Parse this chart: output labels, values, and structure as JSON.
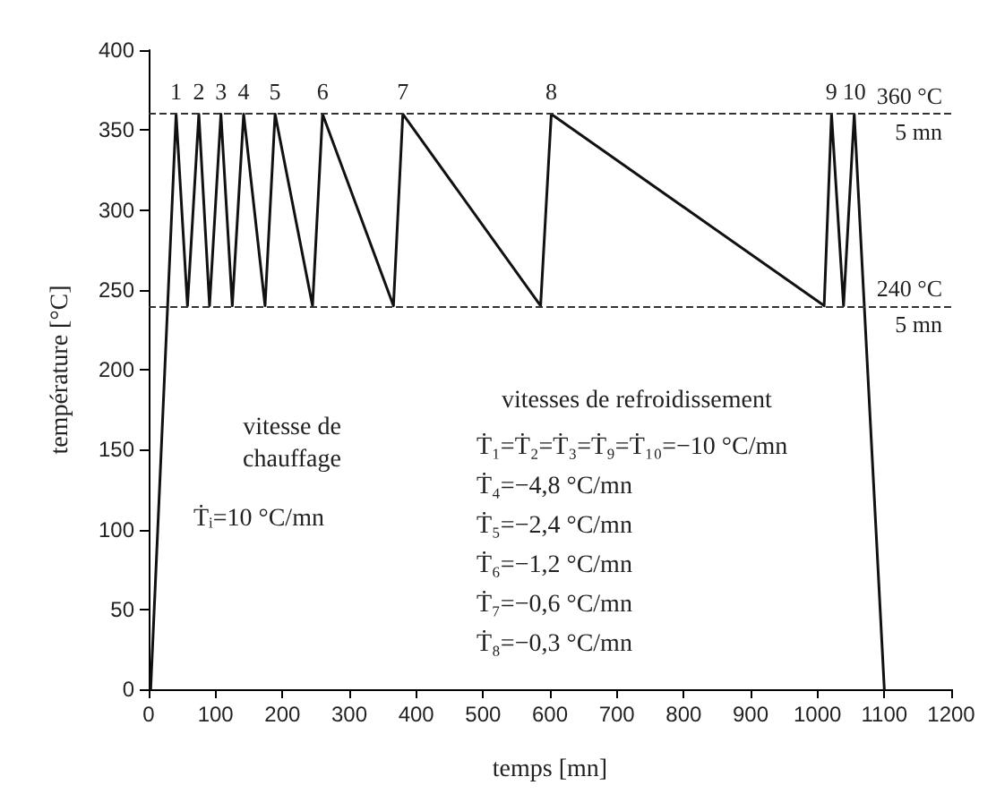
{
  "chart_data": {
    "type": "line",
    "xlabel": "temps [mn]",
    "ylabel": "température [°C]",
    "series": [
      {
        "color": "#111111",
        "x": [
          3,
          41,
          58,
          75,
          91,
          108,
          125,
          142,
          174,
          189,
          245,
          260,
          366,
          380,
          586,
          602,
          1010,
          1021,
          1039,
          1055,
          1100
        ],
        "values": [
          0,
          360,
          240,
          360,
          240,
          360,
          240,
          360,
          240,
          360,
          240,
          360,
          240,
          360,
          240,
          360,
          240,
          360,
          240,
          360,
          0
        ]
      }
    ],
    "xlim": [
      0,
      1200
    ],
    "xticks": [
      0,
      100,
      200,
      300,
      400,
      500,
      600,
      700,
      800,
      900,
      1000,
      1100,
      1200
    ],
    "ylim": [
      0,
      400
    ],
    "yticks": [
      0,
      50,
      100,
      150,
      200,
      250,
      300,
      350,
      400
    ],
    "grid": false,
    "marker": "none",
    "line_style": "solid",
    "ref_lines": [
      {
        "axis": "y",
        "value": 360,
        "label": "360 °C\n5 mn",
        "line_style": "dashed"
      },
      {
        "axis": "y",
        "value": 240,
        "label": "240 °C\n5 mn",
        "line_style": "dashed"
      }
    ],
    "annotations": [
      {
        "text": "1",
        "x": 41,
        "y": 360
      },
      {
        "text": "2",
        "x": 75,
        "y": 360
      },
      {
        "text": "3",
        "x": 108,
        "y": 360
      },
      {
        "text": "4",
        "x": 142,
        "y": 360
      },
      {
        "text": "5",
        "x": 189,
        "y": 360
      },
      {
        "text": "6",
        "x": 260,
        "y": 360
      },
      {
        "text": "7",
        "x": 380,
        "y": 360
      },
      {
        "text": "8",
        "x": 602,
        "y": 360
      },
      {
        "text": "9",
        "x": 1021,
        "y": 360
      },
      {
        "text": "10",
        "x": 1055,
        "y": 360
      },
      "vitesse de\nchauffage",
      "Ṫᵢ=10 °C/mn",
      "vitesses de refroidissement",
      "Ṫ₁=Ṫ₂=Ṫ₃=Ṫ₉=Ṫ₁₀=−10 °C/mn",
      "Ṫ₄=−4,8 °C/mn",
      "Ṫ₅=−2,4 °C/mn",
      "Ṫ₆=−1,2 °C/mn",
      "Ṫ₇=−0,6 °C/mn",
      "Ṫ₈=−0,3 °C/mn"
    ]
  }
}
